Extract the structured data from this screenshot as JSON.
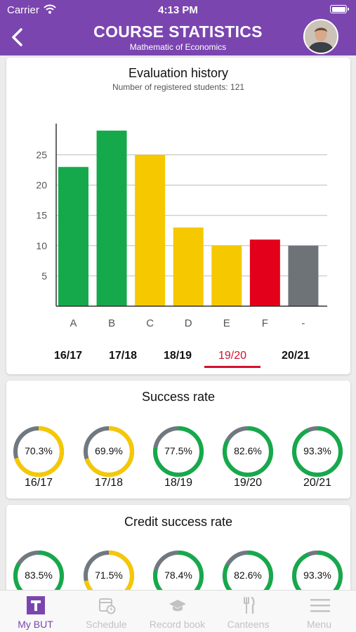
{
  "status_bar": {
    "carrier": "Carrier",
    "time": "4:13 PM"
  },
  "header": {
    "title": "COURSE STATISTICS",
    "subtitle": "Mathematic of Economics"
  },
  "evaluation": {
    "title": "Evaluation history",
    "subtitle": "Number of registered students: 121",
    "years": [
      "16/17",
      "17/18",
      "18/19",
      "19/20",
      "20/21"
    ],
    "active_year": "19/20"
  },
  "chart_data": {
    "type": "bar",
    "title": "Evaluation history",
    "categories": [
      "A",
      "B",
      "C",
      "D",
      "E",
      "F",
      "-"
    ],
    "values": [
      23,
      29,
      25,
      13,
      10,
      11,
      10
    ],
    "colors": [
      "#16a94b",
      "#16a94b",
      "#f5c800",
      "#f5c800",
      "#f5c800",
      "#e3001b",
      "#6e7378"
    ],
    "yticks": [
      5,
      10,
      15,
      20,
      25
    ],
    "ylim": [
      0,
      29
    ],
    "grid": true
  },
  "success_rate": {
    "title": "Success rate",
    "items": [
      {
        "year": "16/17",
        "value": 70.3,
        "label": "70.3%",
        "color": "#f5c800"
      },
      {
        "year": "17/18",
        "value": 69.9,
        "label": "69.9%",
        "color": "#f5c800"
      },
      {
        "year": "18/19",
        "value": 77.5,
        "label": "77.5%",
        "color": "#16a94b"
      },
      {
        "year": "19/20",
        "value": 82.6,
        "label": "82.6%",
        "color": "#16a94b"
      },
      {
        "year": "20/21",
        "value": 93.3,
        "label": "93.3%",
        "color": "#16a94b"
      }
    ]
  },
  "credit_success_rate": {
    "title": "Credit success rate",
    "items": [
      {
        "value": 83.5,
        "label": "83.5%",
        "color": "#16a94b"
      },
      {
        "value": 71.5,
        "label": "71.5%",
        "color": "#f5c800"
      },
      {
        "value": 78.4,
        "label": "78.4%",
        "color": "#16a94b"
      },
      {
        "value": 82.6,
        "label": "82.6%",
        "color": "#16a94b"
      },
      {
        "value": 93.3,
        "label": "93.3%",
        "color": "#16a94b"
      }
    ]
  },
  "tabs": [
    {
      "label": "My BUT",
      "icon": "my-but-logo-icon",
      "active": true
    },
    {
      "label": "Schedule",
      "icon": "calendar-icon",
      "active": false
    },
    {
      "label": "Record book",
      "icon": "graduation-cap-icon",
      "active": false
    },
    {
      "label": "Canteens",
      "icon": "fork-knife-icon",
      "active": false
    },
    {
      "label": "Menu",
      "icon": "hamburger-icon",
      "active": false
    }
  ],
  "colors": {
    "brand": "#7b45b0",
    "track": "#707880",
    "active_tab": "#d3102f"
  }
}
